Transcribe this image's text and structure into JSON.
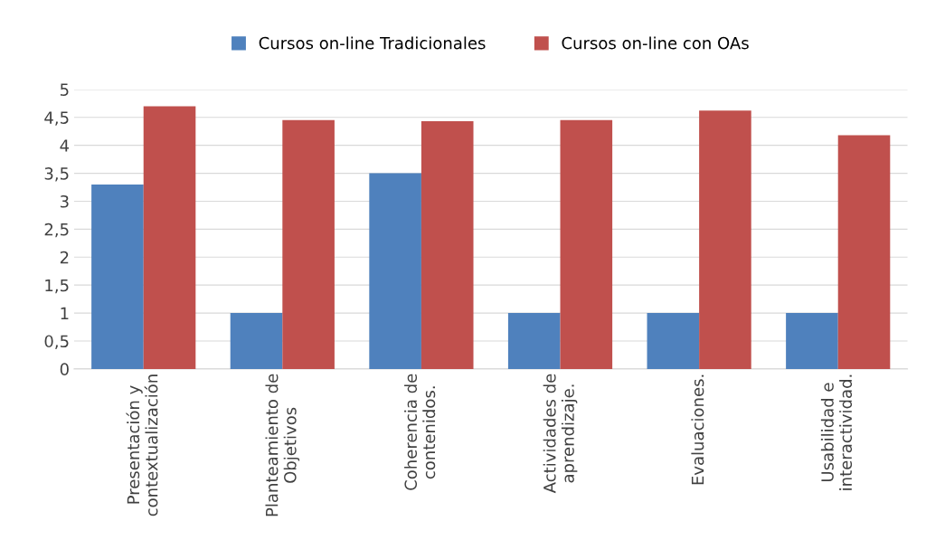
{
  "chart_data": {
    "type": "bar",
    "categories": [
      "Presentación y\ncontextualización",
      "Planteamiento de\nObjetivos",
      "Coherencia de\ncontenidos.",
      "Actividades de\naprendizaje.",
      "Evaluaciones.",
      "Usabilidad e\ninteractividad."
    ],
    "series": [
      {
        "name": "Cursos on-line Tradicionales",
        "color": "#4f81bd",
        "values": [
          3.3,
          1,
          3.5,
          1,
          1,
          1
        ]
      },
      {
        "name": "Cursos on-line con OAs",
        "color": "#c0504d",
        "values": [
          4.7,
          4.45,
          4.43,
          4.45,
          4.62,
          4.18
        ]
      }
    ],
    "ylim": [
      0,
      5
    ],
    "yticks": [
      0,
      {
        "value": 0.5,
        "label": "0,5"
      },
      1,
      {
        "value": 1.5,
        "label": "1,5"
      },
      2,
      {
        "value": 2.5,
        "label": "2,5"
      },
      3,
      {
        "value": 3.5,
        "label": "3,5"
      },
      4,
      {
        "value": 4.5,
        "label": "4,5"
      },
      5
    ],
    "grid": "y",
    "legend": "top"
  }
}
